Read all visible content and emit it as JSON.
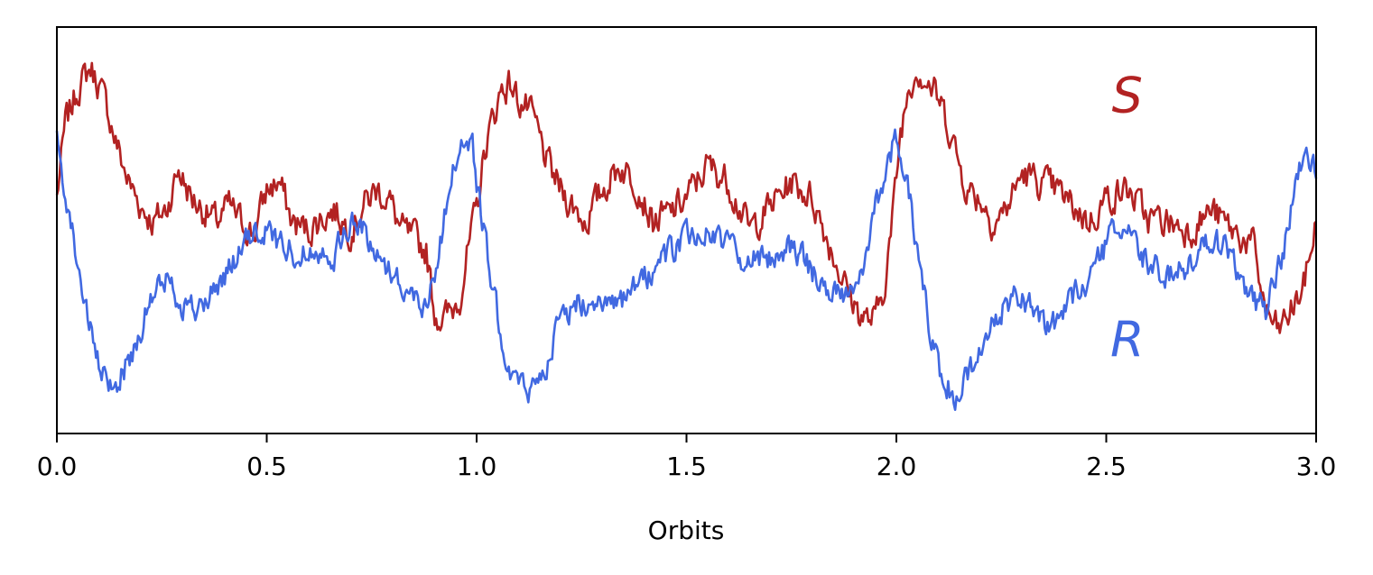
{
  "chart_data": {
    "type": "line",
    "title": "",
    "xlabel": "Orbits",
    "ylabel": "",
    "xlim": [
      0.0,
      3.0
    ],
    "ylim": [
      0.0,
      1.0
    ],
    "xticks": [
      0.0,
      0.5,
      1.0,
      1.5,
      2.0,
      2.5,
      3.0
    ],
    "xtick_labels": [
      "0.0",
      "0.5",
      "1.0",
      "1.5",
      "2.0",
      "2.5",
      "3.0"
    ],
    "yticks_visible": false,
    "grid": false,
    "legend": "none",
    "annotations": [
      {
        "text": "S",
        "x": 2.55,
        "y": 0.79,
        "color": "#b22222"
      },
      {
        "text": "R",
        "x": 2.55,
        "y": 0.19,
        "color": "#4169e1"
      }
    ],
    "series": [
      {
        "color": "#b22222",
        "noise": 0.035,
        "x": [
          0.0,
          0.02,
          0.05,
          0.08,
          0.1,
          0.12,
          0.14,
          0.17,
          0.2,
          0.23,
          0.26,
          0.29,
          0.32,
          0.35,
          0.38,
          0.41,
          0.44,
          0.47,
          0.5,
          0.53,
          0.56,
          0.6,
          0.63,
          0.66,
          0.7,
          0.73,
          0.76,
          0.79,
          0.82,
          0.85,
          0.88,
          0.9,
          0.92,
          0.94,
          0.96,
          0.98,
          1.0,
          1.02,
          1.04,
          1.06,
          1.08,
          1.1,
          1.12,
          1.14,
          1.17,
          1.2,
          1.23,
          1.26,
          1.3,
          1.34,
          1.38,
          1.42,
          1.46,
          1.5,
          1.55,
          1.6,
          1.65,
          1.7,
          1.75,
          1.8,
          1.85,
          1.88,
          1.91,
          1.93,
          1.95,
          1.97,
          1.99,
          2.01,
          2.03,
          2.05,
          2.07,
          2.09,
          2.11,
          2.13,
          2.15,
          2.17,
          2.2,
          2.23,
          2.26,
          2.3,
          2.34,
          2.38,
          2.42,
          2.46,
          2.5,
          2.55,
          2.6,
          2.65,
          2.7,
          2.75,
          2.8,
          2.85,
          2.88,
          2.91,
          2.94,
          2.97,
          3.0
        ],
        "y": [
          0.58,
          0.76,
          0.85,
          0.9,
          0.86,
          0.8,
          0.72,
          0.62,
          0.56,
          0.52,
          0.55,
          0.65,
          0.58,
          0.55,
          0.52,
          0.56,
          0.52,
          0.49,
          0.6,
          0.62,
          0.52,
          0.5,
          0.53,
          0.55,
          0.5,
          0.56,
          0.6,
          0.58,
          0.5,
          0.48,
          0.45,
          0.3,
          0.28,
          0.3,
          0.34,
          0.45,
          0.55,
          0.7,
          0.78,
          0.85,
          0.86,
          0.82,
          0.8,
          0.76,
          0.66,
          0.6,
          0.56,
          0.52,
          0.6,
          0.66,
          0.62,
          0.52,
          0.54,
          0.58,
          0.66,
          0.62,
          0.5,
          0.56,
          0.62,
          0.58,
          0.44,
          0.36,
          0.3,
          0.28,
          0.28,
          0.36,
          0.52,
          0.74,
          0.86,
          0.9,
          0.87,
          0.84,
          0.8,
          0.74,
          0.66,
          0.6,
          0.58,
          0.52,
          0.55,
          0.64,
          0.62,
          0.6,
          0.56,
          0.52,
          0.58,
          0.6,
          0.53,
          0.52,
          0.5,
          0.55,
          0.5,
          0.46,
          0.3,
          0.25,
          0.3,
          0.36,
          0.52
        ]
      },
      {
        "color": "#4169e1",
        "noise": 0.03,
        "x": [
          0.0,
          0.02,
          0.04,
          0.06,
          0.08,
          0.1,
          0.12,
          0.14,
          0.16,
          0.18,
          0.2,
          0.23,
          0.26,
          0.3,
          0.34,
          0.38,
          0.42,
          0.46,
          0.5,
          0.54,
          0.58,
          0.62,
          0.66,
          0.7,
          0.73,
          0.76,
          0.8,
          0.84,
          0.88,
          0.91,
          0.93,
          0.95,
          0.97,
          0.99,
          1.0,
          1.02,
          1.04,
          1.06,
          1.08,
          1.1,
          1.12,
          1.14,
          1.16,
          1.18,
          1.2,
          1.24,
          1.28,
          1.32,
          1.36,
          1.4,
          1.45,
          1.5,
          1.55,
          1.6,
          1.65,
          1.7,
          1.75,
          1.8,
          1.84,
          1.87,
          1.9,
          1.92,
          1.94,
          1.96,
          1.98,
          2.0,
          2.02,
          2.04,
          2.06,
          2.08,
          2.1,
          2.12,
          2.14,
          2.16,
          2.18,
          2.2,
          2.24,
          2.28,
          2.32,
          2.36,
          2.4,
          2.44,
          2.48,
          2.52,
          2.56,
          2.6,
          2.65,
          2.7,
          2.75,
          2.8,
          2.84,
          2.88,
          2.91,
          2.94,
          2.97,
          3.0
        ],
        "y": [
          0.72,
          0.6,
          0.48,
          0.36,
          0.25,
          0.16,
          0.12,
          0.12,
          0.16,
          0.2,
          0.26,
          0.34,
          0.38,
          0.32,
          0.3,
          0.36,
          0.42,
          0.48,
          0.5,
          0.46,
          0.44,
          0.46,
          0.44,
          0.52,
          0.5,
          0.44,
          0.4,
          0.34,
          0.32,
          0.44,
          0.58,
          0.68,
          0.72,
          0.7,
          0.62,
          0.48,
          0.34,
          0.24,
          0.16,
          0.12,
          0.1,
          0.12,
          0.16,
          0.22,
          0.28,
          0.32,
          0.34,
          0.3,
          0.33,
          0.38,
          0.44,
          0.48,
          0.5,
          0.46,
          0.42,
          0.44,
          0.46,
          0.4,
          0.36,
          0.34,
          0.36,
          0.42,
          0.5,
          0.6,
          0.68,
          0.72,
          0.66,
          0.52,
          0.38,
          0.26,
          0.16,
          0.12,
          0.1,
          0.12,
          0.16,
          0.22,
          0.28,
          0.34,
          0.32,
          0.26,
          0.3,
          0.36,
          0.42,
          0.5,
          0.48,
          0.42,
          0.38,
          0.42,
          0.48,
          0.44,
          0.34,
          0.3,
          0.4,
          0.54,
          0.7,
          0.66
        ]
      }
    ]
  }
}
